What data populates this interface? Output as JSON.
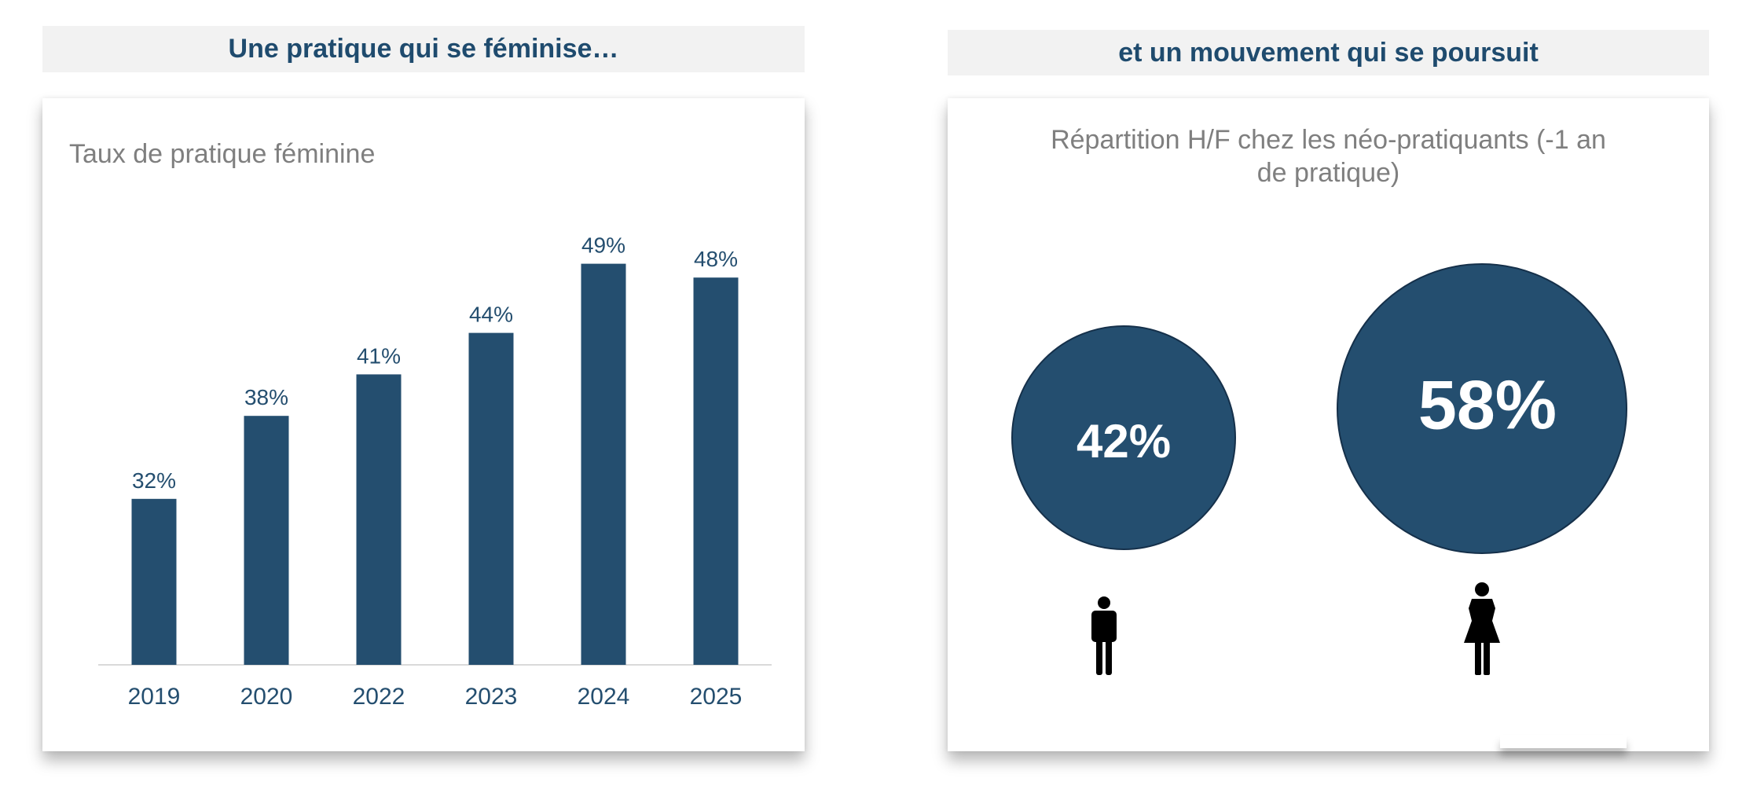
{
  "left_panel": {
    "header": "Une pratique qui se féminise…"
  },
  "right_panel": {
    "header": "et un mouvement qui se poursuit",
    "title_line1": "Répartition H/F chez les néo-pratiquants (-1 an",
    "title_line2": "de pratique)",
    "men": {
      "label": "42%",
      "value": 42,
      "icon": "man-icon"
    },
    "women": {
      "label": "58%",
      "value": 58,
      "icon": "woman-icon"
    }
  },
  "colors": {
    "bar": "#244e6f",
    "header_bg": "#f2f2f2",
    "header_text": "#1f4b6e",
    "title_text": "#7f7f7f"
  },
  "chart_data": [
    {
      "type": "bar",
      "title": "Taux de pratique féminine",
      "categories": [
        "2019",
        "2020",
        "2022",
        "2023",
        "2024",
        "2025"
      ],
      "values": [
        32,
        38,
        41,
        44,
        49,
        48
      ],
      "data_labels": [
        "32%",
        "38%",
        "41%",
        "44%",
        "49%",
        "48%"
      ],
      "xlabel": "",
      "ylabel": "",
      "ylim": [
        20,
        50
      ],
      "grid": false,
      "unit": "%"
    },
    {
      "type": "bubble",
      "title": "Répartition H/F chez les néo-pratiquants (-1 an de pratique)",
      "categories": [
        "Hommes",
        "Femmes"
      ],
      "values": [
        42,
        58
      ],
      "data_labels": [
        "42%",
        "58%"
      ]
    }
  ]
}
